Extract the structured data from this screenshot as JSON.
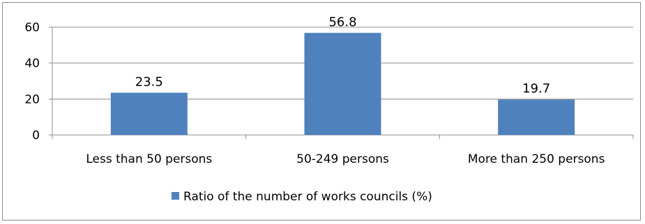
{
  "chart_data": {
    "type": "bar",
    "categories": [
      "Less than 50 persons",
      "50-249 persons",
      "More than 250 persons"
    ],
    "series": [
      {
        "name": "Ratio of the number of works councils (%)",
        "values": [
          23.5,
          56.8,
          19.7
        ],
        "color": "#4f81bd"
      }
    ],
    "data_labels": [
      "23.5",
      "56.8",
      "19.7"
    ],
    "ylim": [
      0,
      60
    ],
    "yticks": [
      "0",
      "20",
      "40",
      "60"
    ],
    "ytick_values": [
      0,
      20,
      40,
      60
    ],
    "grid": true,
    "legend_position": "bottom"
  }
}
